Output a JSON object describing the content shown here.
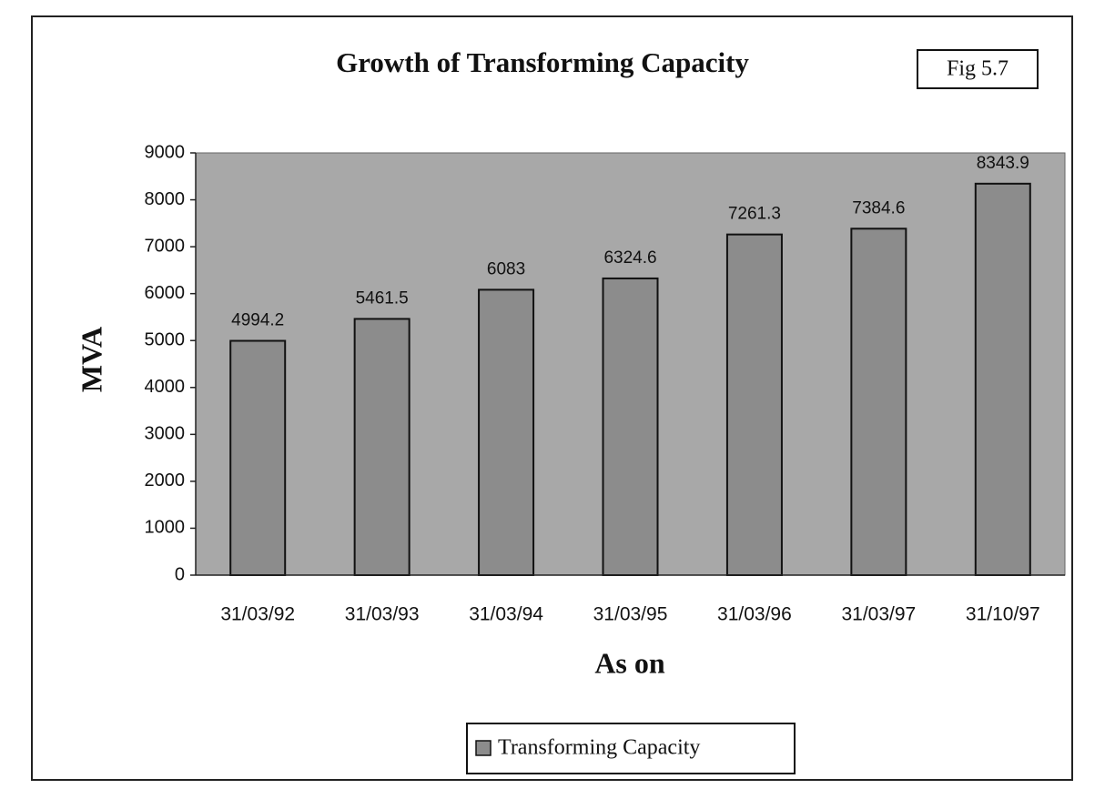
{
  "chart_data": {
    "type": "bar",
    "title": "Growth of Transforming Capacity",
    "annotation": "Fig 5.7",
    "x_label": "As on",
    "y_label": "MVA",
    "categories": [
      "31/03/92",
      "31/03/93",
      "31/03/94",
      "31/03/95",
      "31/03/96",
      "31/03/97",
      "31/10/97"
    ],
    "series": [
      {
        "name": "Transforming Capacity",
        "color": "#8c8c8c",
        "values": [
          4994.2,
          5461.5,
          6083,
          6324.6,
          7261.3,
          7384.6,
          8343.9
        ]
      }
    ],
    "ylim": [
      0,
      9000
    ],
    "yticks": [
      0,
      1000,
      2000,
      3000,
      4000,
      5000,
      6000,
      7000,
      8000,
      9000
    ],
    "grid": false,
    "legend": "bottom"
  }
}
